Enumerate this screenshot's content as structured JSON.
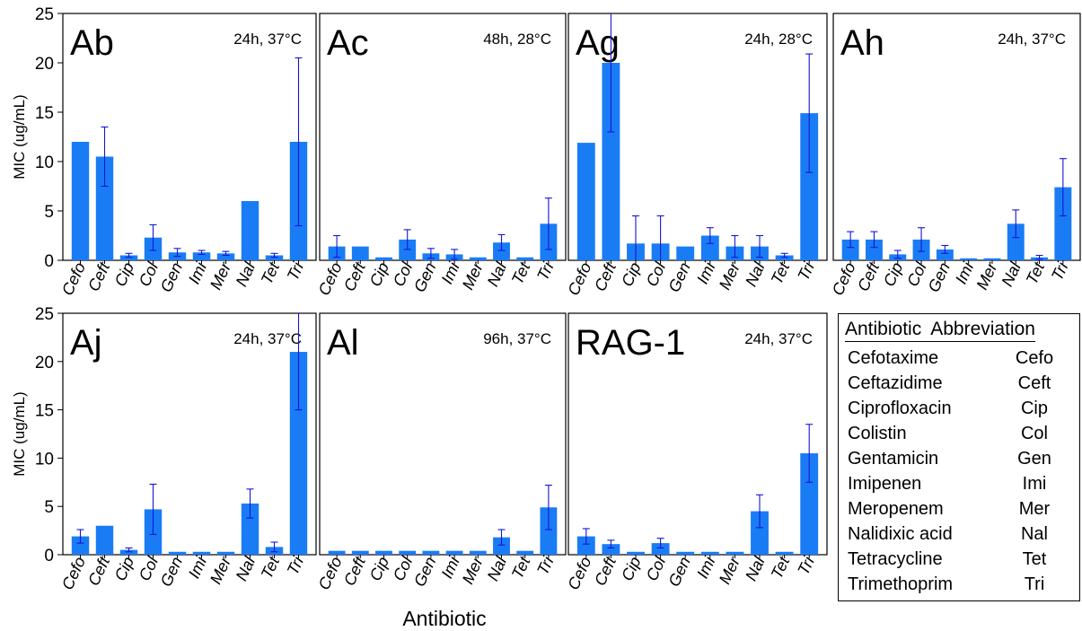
{
  "colors": {
    "bar": "#1a7cf5",
    "error": "#1414d8",
    "axis": "#000000"
  },
  "xlabel": "Antibiotic",
  "ylabel": "MIC (ug/mL)",
  "legend": {
    "header_full": "Antibiotic",
    "header_abbr": "Abbreviation",
    "rows": [
      {
        "full": "Cefotaxime",
        "abbr": "Cefo"
      },
      {
        "full": "Ceftazidime",
        "abbr": "Ceft"
      },
      {
        "full": "Ciprofloxacin",
        "abbr": "Cip"
      },
      {
        "full": "Colistin",
        "abbr": "Col"
      },
      {
        "full": "Gentamicin",
        "abbr": "Gen"
      },
      {
        "full": "Imipenen",
        "abbr": "Imi"
      },
      {
        "full": "Meropenem",
        "abbr": "Mer"
      },
      {
        "full": "Nalidixic  acid",
        "abbr": "Nal"
      },
      {
        "full": "Tetracycline",
        "abbr": "Tet"
      },
      {
        "full": "Trimethoprim",
        "abbr": "Tri"
      }
    ]
  },
  "chart_data": [
    {
      "type": "bar",
      "title": "Ab",
      "condition": "24h, 37°C",
      "categories": [
        "Cefo",
        "Ceft",
        "Cip",
        "Col",
        "Gen",
        "Imi",
        "Mer",
        "Nal",
        "Tet",
        "Tri"
      ],
      "values": [
        12,
        10.5,
        0.5,
        2.3,
        0.8,
        0.8,
        0.7,
        6,
        0.5,
        12
      ],
      "errors": [
        0,
        3,
        0.2,
        1.3,
        0.4,
        0.2,
        0.2,
        0,
        0.2,
        8.5
      ],
      "ylim": [
        0,
        25
      ],
      "yticks": [
        0,
        5,
        10,
        15,
        20,
        25
      ]
    },
    {
      "type": "bar",
      "title": "Ac",
      "condition": "48h, 28°C",
      "categories": [
        "Cefo",
        "Ceft",
        "Cip",
        "Col",
        "Gen",
        "Imi",
        "Mer",
        "Nal",
        "Tet",
        "Tri"
      ],
      "values": [
        1.4,
        1.4,
        0.3,
        2.1,
        0.7,
        0.6,
        0.3,
        1.8,
        0.3,
        3.7
      ],
      "errors": [
        1.1,
        0,
        0,
        1,
        0.5,
        0.5,
        0,
        0.8,
        0,
        2.6
      ],
      "ylim": [
        0,
        25
      ],
      "yticks": [
        0,
        5,
        10,
        15,
        20,
        25
      ]
    },
    {
      "type": "bar",
      "title": "Ag",
      "condition": "24h, 28°C",
      "categories": [
        "Cefo",
        "Ceft",
        "Cip",
        "Col",
        "Gen",
        "Imi",
        "Mer",
        "Nal",
        "Tet",
        "Tri"
      ],
      "values": [
        11.9,
        20,
        1.7,
        1.7,
        1.4,
        2.5,
        1.4,
        1.4,
        0.5,
        14.9
      ],
      "errors": [
        0,
        7,
        2.8,
        2.8,
        0,
        0.8,
        1.1,
        1.1,
        0.2,
        6
      ],
      "ylim": [
        0,
        25
      ],
      "yticks": [
        0,
        5,
        10,
        15,
        20,
        25
      ]
    },
    {
      "type": "bar",
      "title": "Ah",
      "condition": "24h, 37°C",
      "categories": [
        "Cefo",
        "Ceft",
        "Cip",
        "Col",
        "Gen",
        "Imi",
        "Mer",
        "Nal",
        "Tet",
        "Tri"
      ],
      "values": [
        2.1,
        2.1,
        0.6,
        2.1,
        1.1,
        0.2,
        0.2,
        3.7,
        0.3,
        7.4
      ],
      "errors": [
        0.8,
        0.8,
        0.4,
        1.2,
        0.4,
        0,
        0,
        1.4,
        0.2,
        2.9
      ],
      "ylim": [
        0,
        25
      ],
      "yticks": [
        0,
        5,
        10,
        15,
        20,
        25
      ]
    },
    {
      "type": "bar",
      "title": "Aj",
      "condition": "24h, 37°C",
      "categories": [
        "Cefo",
        "Ceft",
        "Cip",
        "Col",
        "Gen",
        "Imi",
        "Mer",
        "Nal",
        "Tet",
        "Tri"
      ],
      "values": [
        1.9,
        3,
        0.5,
        4.7,
        0.3,
        0.3,
        0.3,
        5.3,
        0.8,
        21
      ],
      "errors": [
        0.7,
        0,
        0.2,
        2.6,
        0,
        0,
        0,
        1.5,
        0.5,
        6
      ],
      "ylim": [
        0,
        25
      ],
      "yticks": [
        0,
        5,
        10,
        15,
        20,
        25
      ]
    },
    {
      "type": "bar",
      "title": "Al",
      "condition": "96h, 37°C",
      "categories": [
        "Cefo",
        "Ceft",
        "Cip",
        "Col",
        "Gen",
        "Imi",
        "Mer",
        "Nal",
        "Tet",
        "Tri"
      ],
      "values": [
        0.4,
        0.4,
        0.4,
        0.4,
        0.4,
        0.4,
        0.4,
        1.8,
        0.4,
        4.9
      ],
      "errors": [
        0,
        0,
        0,
        0,
        0,
        0,
        0,
        0.8,
        0,
        2.3
      ],
      "ylim": [
        0,
        25
      ],
      "yticks": [
        0,
        5,
        10,
        15,
        20,
        25
      ]
    },
    {
      "type": "bar",
      "title": "RAG-1",
      "condition": "24h, 37°C",
      "categories": [
        "Cefo",
        "Ceft",
        "Cip",
        "Col",
        "Gen",
        "Imi",
        "Mer",
        "Nal",
        "Tet",
        "Tri"
      ],
      "values": [
        1.9,
        1.1,
        0.3,
        1.2,
        0.3,
        0.3,
        0.3,
        4.5,
        0.3,
        10.5
      ],
      "errors": [
        0.8,
        0.4,
        0,
        0.5,
        0,
        0,
        0,
        1.7,
        0,
        3
      ],
      "ylim": [
        0,
        25
      ],
      "yticks": [
        0,
        5,
        10,
        15,
        20,
        25
      ]
    }
  ]
}
